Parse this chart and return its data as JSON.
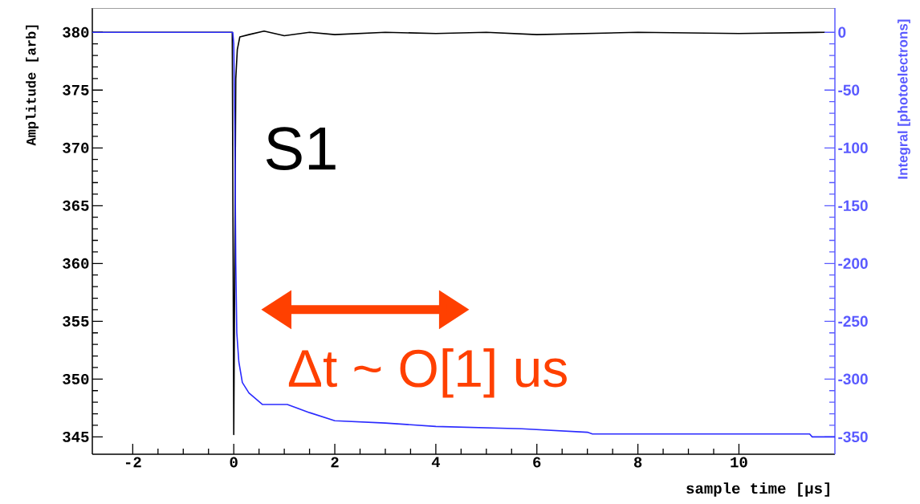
{
  "chart_data": {
    "type": "line",
    "xlabel": "sample time [µs]",
    "ylabel": "Amplitude [arb]",
    "y2label": "Integral [photoelectrons]",
    "xlim": [
      -2.8,
      11.9
    ],
    "ylim": [
      343.5,
      382.1
    ],
    "y2lim": [
      -365,
      21
    ],
    "xticks": [
      -2,
      0,
      2,
      4,
      6,
      8,
      10
    ],
    "yticks": [
      345,
      350,
      355,
      360,
      365,
      370,
      375,
      380
    ],
    "y2ticks": [
      -350,
      -300,
      -250,
      -200,
      -150,
      -100,
      -50,
      0
    ],
    "series": [
      {
        "color": "#000000",
        "x": [
          -2.8,
          -0.03,
          0,
          0.02,
          0.04,
          0.07,
          0.12,
          0.3,
          0.6,
          1.0,
          1.5,
          2.0,
          3.0,
          4.0,
          5.0,
          6.0,
          8.0,
          10.0,
          11.7
        ],
        "values": [
          380,
          380,
          345.2,
          360,
          376,
          378.5,
          379.6,
          379.8,
          380.1,
          379.7,
          380,
          379.8,
          380,
          379.9,
          380,
          379.8,
          380,
          379.9,
          380
        ]
      },
      {
        "color": "#2b2bff",
        "axis": "y2",
        "x": [
          -2.8,
          -0.02,
          0.0,
          0.02,
          0.04,
          0.06,
          0.1,
          0.17,
          0.3,
          0.57,
          1.06,
          1.5,
          2.0,
          3.0,
          4.0,
          5.7,
          7.0,
          7.1,
          11.4,
          11.45,
          11.9
        ],
        "values": [
          0,
          0,
          -10,
          -80,
          -200,
          -260,
          -285,
          -303,
          -312,
          -322,
          -322,
          -329,
          -336,
          -338,
          -341,
          -343,
          -346,
          -347.5,
          -347.5,
          -350,
          -350
        ]
      }
    ],
    "annotations": [
      "S1",
      "Δt ~ O[1] us"
    ]
  }
}
